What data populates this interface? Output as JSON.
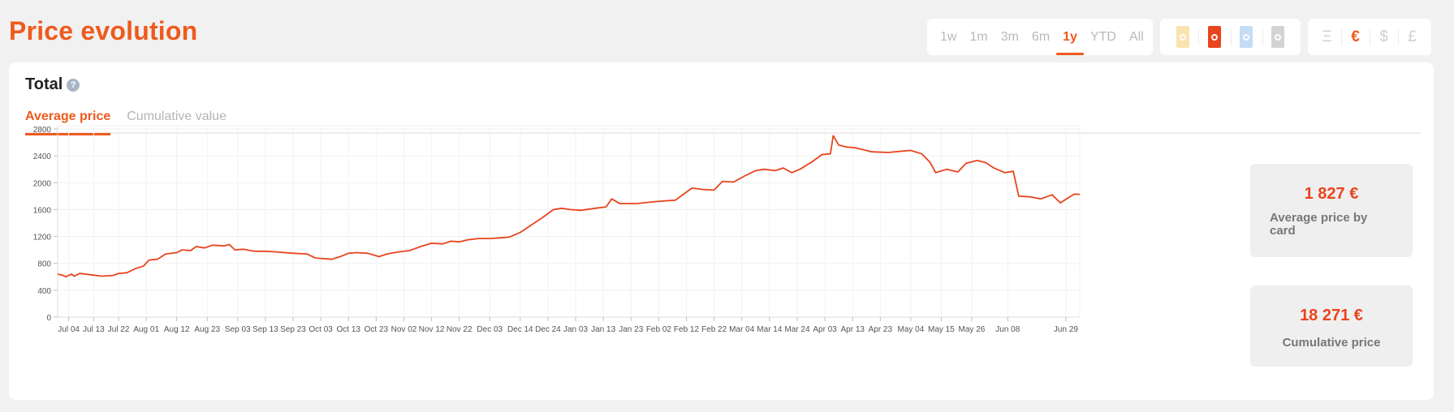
{
  "page": {
    "title": "Price evolution"
  },
  "periods": {
    "items": [
      "1w",
      "1m",
      "3m",
      "6m",
      "1y",
      "YTD",
      "All"
    ],
    "active": "1y"
  },
  "sources": {
    "items": [
      {
        "icon": "source-icon-yellow",
        "color": "#fbe3b0",
        "active": false
      },
      {
        "icon": "source-icon-red",
        "color": "#e8441d",
        "active": true
      },
      {
        "icon": "source-icon-blue",
        "color": "#c5dcf5",
        "active": false
      },
      {
        "icon": "source-icon-gray",
        "color": "#d3d3d3",
        "active": false
      }
    ]
  },
  "currencies": {
    "items": [
      "Ξ",
      "€",
      "$",
      "£"
    ],
    "active": "€"
  },
  "card": {
    "title": "Total",
    "tabs": [
      "Average price",
      "Cumulative value"
    ],
    "active_tab": "Average price"
  },
  "stats": {
    "average": {
      "value": "1 827 €",
      "label": "Average price by card"
    },
    "cumulative": {
      "value": "18 271 €",
      "label": "Cumulative price"
    }
  },
  "colors": {
    "accent": "#ee5a1e",
    "line": "#e8441d"
  },
  "chart_data": {
    "type": "line",
    "title": "",
    "xlabel": "",
    "ylabel": "",
    "ylim": [
      0,
      2800
    ],
    "yticks": [
      0,
      400,
      800,
      1200,
      1600,
      2000,
      2400,
      2800
    ],
    "grid": true,
    "xlim": [
      "2022-06-30",
      "2023-07-04"
    ],
    "xticks": [
      {
        "date": "2022-07-04",
        "label": "Jul 04"
      },
      {
        "date": "2022-07-13",
        "label": "Jul 13"
      },
      {
        "date": "2022-07-22",
        "label": "Jul 22"
      },
      {
        "date": "2022-08-01",
        "label": "Aug 01"
      },
      {
        "date": "2022-08-12",
        "label": "Aug 12"
      },
      {
        "date": "2022-08-23",
        "label": "Aug 23"
      },
      {
        "date": "2022-09-03",
        "label": "Sep 03"
      },
      {
        "date": "2022-09-13",
        "label": "Sep 13"
      },
      {
        "date": "2022-09-23",
        "label": "Sep 23"
      },
      {
        "date": "2022-10-03",
        "label": "Oct 03"
      },
      {
        "date": "2022-10-13",
        "label": "Oct 13"
      },
      {
        "date": "2022-10-23",
        "label": "Oct 23"
      },
      {
        "date": "2022-11-02",
        "label": "Nov 02"
      },
      {
        "date": "2022-11-12",
        "label": "Nov 12"
      },
      {
        "date": "2022-11-22",
        "label": "Nov 22"
      },
      {
        "date": "2022-12-03",
        "label": "Dec 03"
      },
      {
        "date": "2022-12-14",
        "label": "Dec 14"
      },
      {
        "date": "2022-12-24",
        "label": "Dec 24"
      },
      {
        "date": "2023-01-03",
        "label": "Jan 03"
      },
      {
        "date": "2023-01-13",
        "label": "Jan 13"
      },
      {
        "date": "2023-01-23",
        "label": "Jan 23"
      },
      {
        "date": "2023-02-02",
        "label": "Feb 02"
      },
      {
        "date": "2023-02-12",
        "label": "Feb 12"
      },
      {
        "date": "2023-02-22",
        "label": "Feb 22"
      },
      {
        "date": "2023-03-04",
        "label": "Mar 04"
      },
      {
        "date": "2023-03-14",
        "label": "Mar 14"
      },
      {
        "date": "2023-03-24",
        "label": "Mar 24"
      },
      {
        "date": "2023-04-03",
        "label": "Apr 03"
      },
      {
        "date": "2023-04-13",
        "label": "Apr 13"
      },
      {
        "date": "2023-04-23",
        "label": "Apr 23"
      },
      {
        "date": "2023-05-04",
        "label": "May 04"
      },
      {
        "date": "2023-05-15",
        "label": "May 15"
      },
      {
        "date": "2023-05-26",
        "label": "May 26"
      },
      {
        "date": "2023-06-08",
        "label": "Jun 08"
      },
      {
        "date": "2023-06-29",
        "label": "Jun 29"
      }
    ],
    "series": [
      {
        "color": "#e8441d",
        "points": [
          [
            "2022-06-30",
            640
          ],
          [
            "2022-07-02",
            620
          ],
          [
            "2022-07-03",
            600
          ],
          [
            "2022-07-05",
            640
          ],
          [
            "2022-07-06",
            610
          ],
          [
            "2022-07-08",
            650
          ],
          [
            "2022-07-12",
            630
          ],
          [
            "2022-07-16",
            610
          ],
          [
            "2022-07-20",
            620
          ],
          [
            "2022-07-22",
            650
          ],
          [
            "2022-07-25",
            660
          ],
          [
            "2022-07-28",
            720
          ],
          [
            "2022-07-31",
            760
          ],
          [
            "2022-08-02",
            850
          ],
          [
            "2022-08-05",
            860
          ],
          [
            "2022-08-08",
            940
          ],
          [
            "2022-08-12",
            960
          ],
          [
            "2022-08-14",
            1000
          ],
          [
            "2022-08-17",
            990
          ],
          [
            "2022-08-19",
            1050
          ],
          [
            "2022-08-22",
            1030
          ],
          [
            "2022-08-25",
            1070
          ],
          [
            "2022-08-29",
            1060
          ],
          [
            "2022-08-31",
            1080
          ],
          [
            "2022-09-02",
            1000
          ],
          [
            "2022-09-05",
            1010
          ],
          [
            "2022-09-09",
            980
          ],
          [
            "2022-09-13",
            980
          ],
          [
            "2022-09-17",
            970
          ],
          [
            "2022-09-23",
            950
          ],
          [
            "2022-09-28",
            940
          ],
          [
            "2022-10-01",
            880
          ],
          [
            "2022-10-04",
            870
          ],
          [
            "2022-10-07",
            860
          ],
          [
            "2022-10-10",
            900
          ],
          [
            "2022-10-13",
            950
          ],
          [
            "2022-10-16",
            960
          ],
          [
            "2022-10-20",
            950
          ],
          [
            "2022-10-24",
            900
          ],
          [
            "2022-10-27",
            940
          ],
          [
            "2022-10-31",
            970
          ],
          [
            "2022-11-04",
            990
          ],
          [
            "2022-11-08",
            1050
          ],
          [
            "2022-11-12",
            1100
          ],
          [
            "2022-11-16",
            1090
          ],
          [
            "2022-11-19",
            1130
          ],
          [
            "2022-11-22",
            1120
          ],
          [
            "2022-11-25",
            1150
          ],
          [
            "2022-11-29",
            1170
          ],
          [
            "2022-12-03",
            1170
          ],
          [
            "2022-12-07",
            1180
          ],
          [
            "2022-12-10",
            1190
          ],
          [
            "2022-12-14",
            1260
          ],
          [
            "2022-12-18",
            1370
          ],
          [
            "2022-12-22",
            1480
          ],
          [
            "2022-12-26",
            1600
          ],
          [
            "2022-12-29",
            1620
          ],
          [
            "2023-01-01",
            1600
          ],
          [
            "2023-01-05",
            1590
          ],
          [
            "2023-01-10",
            1620
          ],
          [
            "2023-01-14",
            1640
          ],
          [
            "2023-01-16",
            1760
          ],
          [
            "2023-01-19",
            1690
          ],
          [
            "2023-01-25",
            1690
          ],
          [
            "2023-02-01",
            1720
          ],
          [
            "2023-02-08",
            1740
          ],
          [
            "2023-02-11",
            1830
          ],
          [
            "2023-02-14",
            1920
          ],
          [
            "2023-02-18",
            1900
          ],
          [
            "2023-02-22",
            1890
          ],
          [
            "2023-02-25",
            2020
          ],
          [
            "2023-03-01",
            2010
          ],
          [
            "2023-03-05",
            2100
          ],
          [
            "2023-03-09",
            2180
          ],
          [
            "2023-03-12",
            2200
          ],
          [
            "2023-03-16",
            2180
          ],
          [
            "2023-03-19",
            2220
          ],
          [
            "2023-03-22",
            2150
          ],
          [
            "2023-03-25",
            2200
          ],
          [
            "2023-03-29",
            2300
          ],
          [
            "2023-04-02",
            2420
          ],
          [
            "2023-04-05",
            2430
          ],
          [
            "2023-04-06",
            2700
          ],
          [
            "2023-04-08",
            2560
          ],
          [
            "2023-04-11",
            2530
          ],
          [
            "2023-04-14",
            2520
          ],
          [
            "2023-04-20",
            2460
          ],
          [
            "2023-04-26",
            2450
          ],
          [
            "2023-05-01",
            2470
          ],
          [
            "2023-05-04",
            2480
          ],
          [
            "2023-05-08",
            2430
          ],
          [
            "2023-05-11",
            2300
          ],
          [
            "2023-05-13",
            2150
          ],
          [
            "2023-05-17",
            2200
          ],
          [
            "2023-05-21",
            2160
          ],
          [
            "2023-05-24",
            2290
          ],
          [
            "2023-05-28",
            2330
          ],
          [
            "2023-05-31",
            2300
          ],
          [
            "2023-06-03",
            2220
          ],
          [
            "2023-06-07",
            2150
          ],
          [
            "2023-06-10",
            2170
          ],
          [
            "2023-06-12",
            1800
          ],
          [
            "2023-06-16",
            1790
          ],
          [
            "2023-06-20",
            1760
          ],
          [
            "2023-06-24",
            1820
          ],
          [
            "2023-06-27",
            1700
          ],
          [
            "2023-06-30",
            1780
          ],
          [
            "2023-07-02",
            1830
          ],
          [
            "2023-07-04",
            1827
          ]
        ]
      }
    ]
  }
}
